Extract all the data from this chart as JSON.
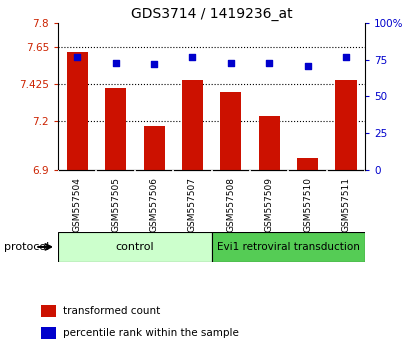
{
  "title": "GDS3714 / 1419236_at",
  "samples": [
    "GSM557504",
    "GSM557505",
    "GSM557506",
    "GSM557507",
    "GSM557508",
    "GSM557509",
    "GSM557510",
    "GSM557511"
  ],
  "bar_values": [
    7.62,
    7.4,
    7.17,
    7.45,
    7.38,
    7.23,
    6.97,
    7.45
  ],
  "dot_values": [
    77,
    73,
    72,
    77,
    73,
    73,
    71,
    77
  ],
  "ylim_left": [
    6.9,
    7.8
  ],
  "ylim_right": [
    0,
    100
  ],
  "yticks_left": [
    6.9,
    7.2,
    7.425,
    7.65,
    7.8
  ],
  "yticks_right": [
    0,
    25,
    50,
    75,
    100
  ],
  "bar_color": "#cc1100",
  "dot_color": "#0000cc",
  "left_tick_color": "#cc2200",
  "right_tick_color": "#0000cc",
  "grid_yticks": [
    7.2,
    7.425,
    7.65
  ],
  "control_color": "#ccffcc",
  "evi1_color": "#55cc55",
  "xtick_bg_color": "#c8c8c8",
  "xtick_divider_color": "#ffffff",
  "protocol_label": "protocol",
  "legend_bar_label": "transformed count",
  "legend_dot_label": "percentile rank within the sample"
}
